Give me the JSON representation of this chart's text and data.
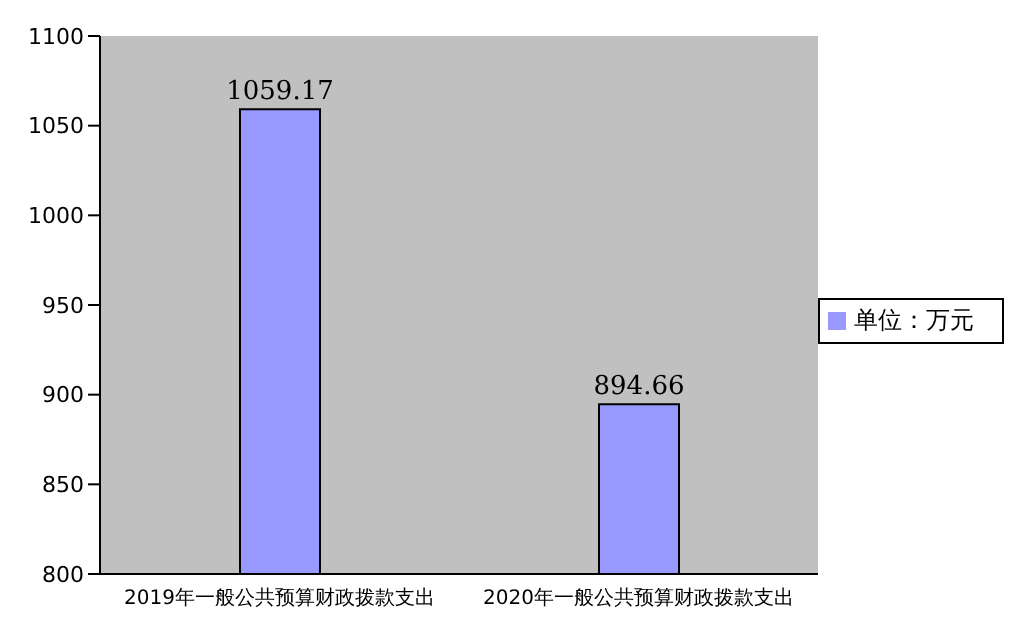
{
  "chart_data": {
    "type": "bar",
    "categories": [
      "2019年一般公共预算财政拨款支出",
      "2020年一般公共预算财政拨款支出"
    ],
    "series": [
      {
        "name": "单位：万元",
        "color": "#9999ff",
        "values": [
          1059.17,
          894.66
        ]
      }
    ],
    "ylim": [
      800,
      1100
    ],
    "yticks": [
      800,
      850,
      900,
      950,
      1000,
      1050,
      1100
    ],
    "grid": false,
    "legend": "right",
    "data_labels": true
  }
}
